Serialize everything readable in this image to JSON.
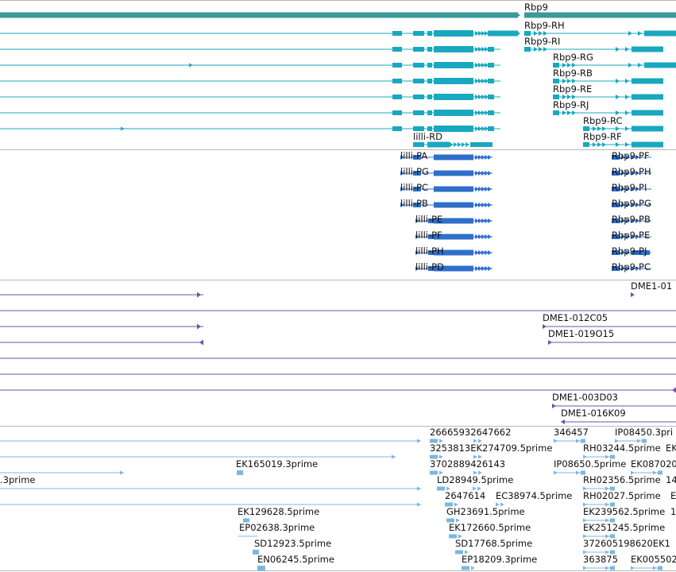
{
  "colors": {
    "mrna": "#18a8c0",
    "mrna_gene": "#3a9a9a",
    "protein": "#2e6fcc",
    "clone": "#7050a8",
    "est": "#7ab8e0",
    "separator": "#b8b8b8"
  },
  "tracks": {
    "gene": {
      "label": "Rbp9"
    },
    "transcripts": [
      "Rbp9-RH",
      "Rbp9-RI",
      "Rbp9-RG",
      "Rbp9-RB",
      "Rbp9-RE",
      "Rbp9-RJ",
      "Rbp9-RC",
      "Rbp9-RF",
      "lilli-RD"
    ],
    "proteins": [
      "lilli-PA",
      "lilli-PG",
      "lilli-PC",
      "lilli-PB",
      "lilli-PE",
      "lilli-PF",
      "lilli-PH",
      "lilli-PD",
      "Rbp9-PF",
      "Rbp9-PH",
      "Rbp9-PI",
      "Rbp9-PG",
      "Rbp9-PB",
      "Rbp9-PE",
      "Rbp9-PJ",
      "Rbp9-PC"
    ],
    "clones": [
      "DME1-01",
      "DME1-012C05",
      "DME1-019O15",
      "DME1-003D03",
      "DME1-016K09"
    ],
    "ests": [
      "26665932647662",
      "346457",
      "IP08450.3pri",
      "3253813EK274709.5prime",
      "RH03244.5prime",
      "EK",
      "EK165019.3prime",
      "3702889426143",
      "IP08650.5prime",
      "EK087020",
      ".3prime",
      "LD28949.5prime",
      "RH02356.5prime",
      "14",
      "2647614",
      "EC38974.5prime",
      "RH02027.5prime",
      "E",
      "EK129628.5prime",
      "GH23691.5prime",
      "EK239562.5prime",
      "1",
      "EP02638.3prime",
      "EK172660.5prime",
      "EK251245.5prime",
      "SD12923.5prime",
      "SD17768.5prime",
      "372605198620EK1",
      "EN06245.5prime",
      "EP18209.3prime",
      "363875",
      "EK005502"
    ]
  }
}
